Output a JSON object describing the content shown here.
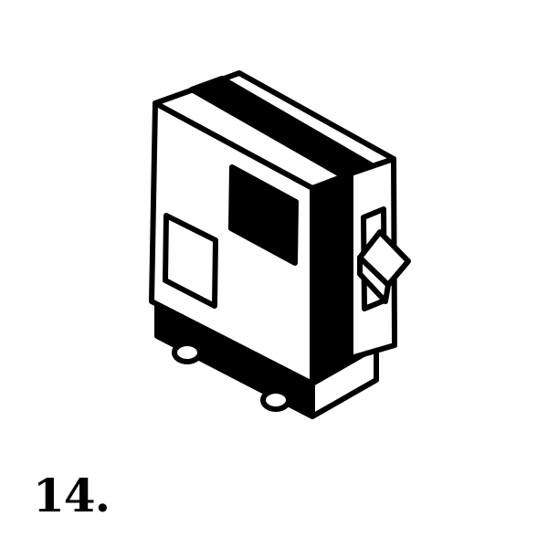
{
  "figure": {
    "number_label": "14.",
    "icon": "circuit-breaker-icon",
    "colors": {
      "ink": "#000000",
      "paper": "#ffffff"
    }
  }
}
